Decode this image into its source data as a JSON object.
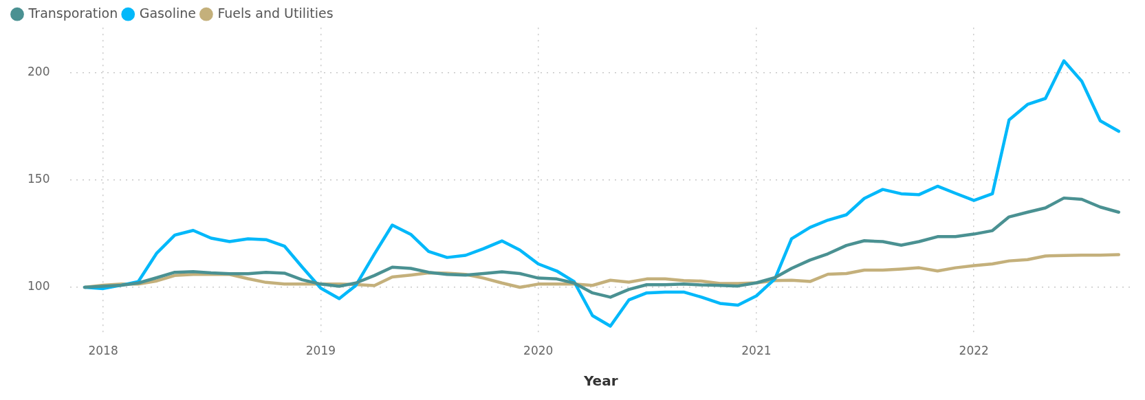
{
  "chart_data": {
    "type": "line",
    "xlabel": "Year",
    "x": [
      "2017-12",
      "2018-01",
      "2018-02",
      "2018-03",
      "2018-04",
      "2018-05",
      "2018-06",
      "2018-07",
      "2018-08",
      "2018-09",
      "2018-10",
      "2018-11",
      "2018-12",
      "2019-01",
      "2019-02",
      "2019-03",
      "2019-04",
      "2019-05",
      "2019-06",
      "2019-07",
      "2019-08",
      "2019-09",
      "2019-10",
      "2019-11",
      "2019-12",
      "2020-01",
      "2020-02",
      "2020-03",
      "2020-04",
      "2020-05",
      "2020-06",
      "2020-07",
      "2020-08",
      "2020-09",
      "2020-10",
      "2020-11",
      "2020-12",
      "2021-01",
      "2021-02",
      "2021-03",
      "2021-04",
      "2021-05",
      "2021-06",
      "2021-07",
      "2021-08",
      "2021-09",
      "2021-10",
      "2021-11",
      "2021-12",
      "2022-01",
      "2022-02",
      "2022-03",
      "2022-04",
      "2022-05",
      "2022-06",
      "2022-07",
      "2022-08",
      "2022-09"
    ],
    "series": [
      {
        "name": "Transporation",
        "color": "#4a9192",
        "values": [
          100,
          100.5,
          101,
          102,
          104.5,
          107,
          107.3,
          106.7,
          106.3,
          106.3,
          107,
          106.6,
          103.5,
          101.5,
          100.5,
          102,
          105.5,
          109.4,
          108.8,
          107,
          106,
          105.7,
          106.4,
          107.2,
          106.4,
          104.3,
          103.9,
          102,
          97.4,
          95.4,
          99,
          101.2,
          101.2,
          101.5,
          101.1,
          100.9,
          100.6,
          102.1,
          104.5,
          108.8,
          112.7,
          115.6,
          119.5,
          121.7,
          121.3,
          119.6,
          121.3,
          123.6,
          123.6,
          124.8,
          126.4,
          132.8,
          135,
          137,
          141.6,
          141,
          137.4,
          135
        ]
      },
      {
        "name": "Gasoline",
        "color": "#01b8fa",
        "values": [
          100,
          99.4,
          101,
          102.7,
          116,
          124.3,
          126.5,
          122.9,
          121.3,
          122.6,
          122.2,
          119.2,
          109.4,
          99.6,
          94.7,
          100.9,
          115.5,
          129,
          124.7,
          116.7,
          113.9,
          114.9,
          118,
          121.6,
          117.4,
          110.9,
          107.6,
          102.7,
          86.8,
          81.9,
          94.1,
          97.4,
          97.8,
          97.8,
          95.4,
          92.5,
          91.7,
          96,
          103.9,
          122.6,
          127.9,
          131.3,
          133.8,
          141.4,
          145.6,
          143.6,
          143.2,
          147.1,
          143.8,
          140.5,
          143.6,
          178,
          185.2,
          188,
          205.5,
          196,
          177.6,
          172.7
        ]
      },
      {
        "name": "Fuels and Utilities",
        "color": "#c4b07b",
        "values": [
          100,
          101,
          101.5,
          101.5,
          103,
          105.5,
          106,
          106,
          106,
          104,
          102.3,
          101.5,
          101.5,
          101.5,
          101.5,
          101.3,
          100.8,
          104.8,
          105.7,
          106.7,
          106.6,
          106,
          104.3,
          102,
          100,
          101.5,
          101.5,
          101.5,
          100.9,
          103.3,
          102.4,
          103.9,
          103.9,
          103.1,
          102.9,
          101.8,
          101.8,
          102.1,
          103.1,
          103.3,
          102.7,
          106.1,
          106.4,
          108,
          108,
          108.5,
          109.1,
          107.6,
          109.1,
          110.1,
          110.9,
          112.3,
          112.9,
          114.6,
          114.8,
          115,
          115,
          115.2
        ]
      }
    ],
    "xlim": [
      "2017-11-07",
      "2022-09-22"
    ],
    "xticks": [
      "2018",
      "2019",
      "2020",
      "2021",
      "2022"
    ],
    "ylim": [
      79,
      221
    ],
    "yticks": [
      100,
      150,
      200
    ],
    "grid": true,
    "legend": "top left",
    "marker": "none",
    "line_style": "solid"
  }
}
